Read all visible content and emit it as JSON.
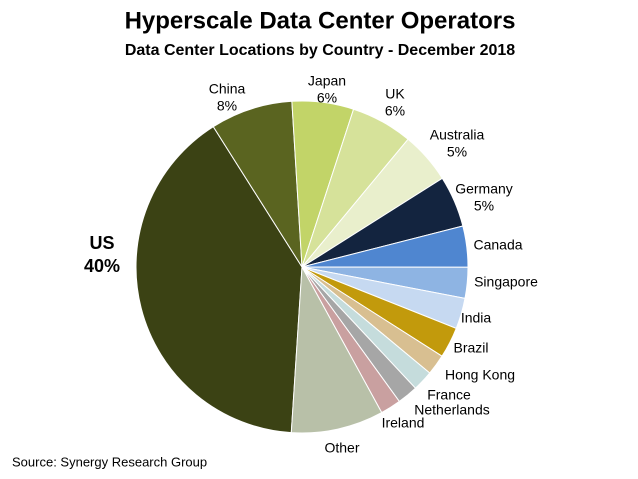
{
  "chart_data": {
    "type": "pie",
    "title": "Hyperscale Data Center Operators",
    "subtitle": "Data Center Locations by Country - December 2018",
    "source": "Source: Synergy Research Group",
    "categories": [
      "US",
      "China",
      "Japan",
      "UK",
      "Australia",
      "Germany",
      "Canada",
      "Singapore",
      "India",
      "Brazil",
      "Hong Kong",
      "France",
      "Netherlands",
      "Ireland",
      "Other"
    ],
    "values": [
      40,
      8,
      6,
      6,
      5,
      5,
      4,
      3,
      3,
      3,
      2,
      2,
      2,
      2,
      9
    ],
    "value_labels": [
      "40%",
      "8%",
      "6%",
      "6%",
      "5%",
      "5%",
      null,
      null,
      null,
      null,
      null,
      null,
      null,
      null,
      null
    ],
    "colors": [
      "#3b4214",
      "#5a6420",
      "#c2d468",
      "#d6e29a",
      "#e9efcc",
      "#13243f",
      "#4f86d0",
      "#8eb4e3",
      "#c6d9f1",
      "#c29a0c",
      "#d8bf91",
      "#c5dcdc",
      "#a6a6a6",
      "#c9a0a0",
      "#b8c0a8"
    ]
  }
}
